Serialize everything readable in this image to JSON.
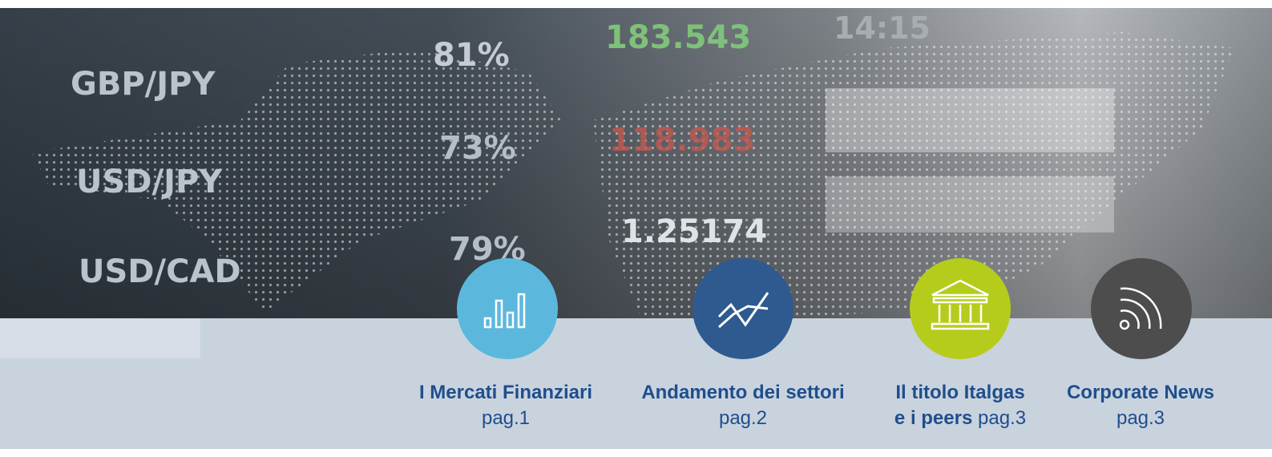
{
  "banner_image": {
    "labels": [
      "GBP/JPY",
      "USD/JPY",
      "USD/CAD",
      "81%",
      "73%",
      "79%",
      "183.543",
      "14:15",
      "118.983",
      "1.25174"
    ]
  },
  "nav": {
    "items": [
      {
        "title_lines": [
          "I Mercati Finanziari"
        ],
        "page": "pag.1"
      },
      {
        "title_lines": [
          "Andamento dei settori"
        ],
        "page": "pag.2"
      },
      {
        "title_lines": [
          "Il titolo Italgas",
          "e i peers"
        ],
        "page": "pag.3"
      },
      {
        "title_lines": [
          "Corporate News"
        ],
        "page": "pag.3"
      }
    ]
  }
}
